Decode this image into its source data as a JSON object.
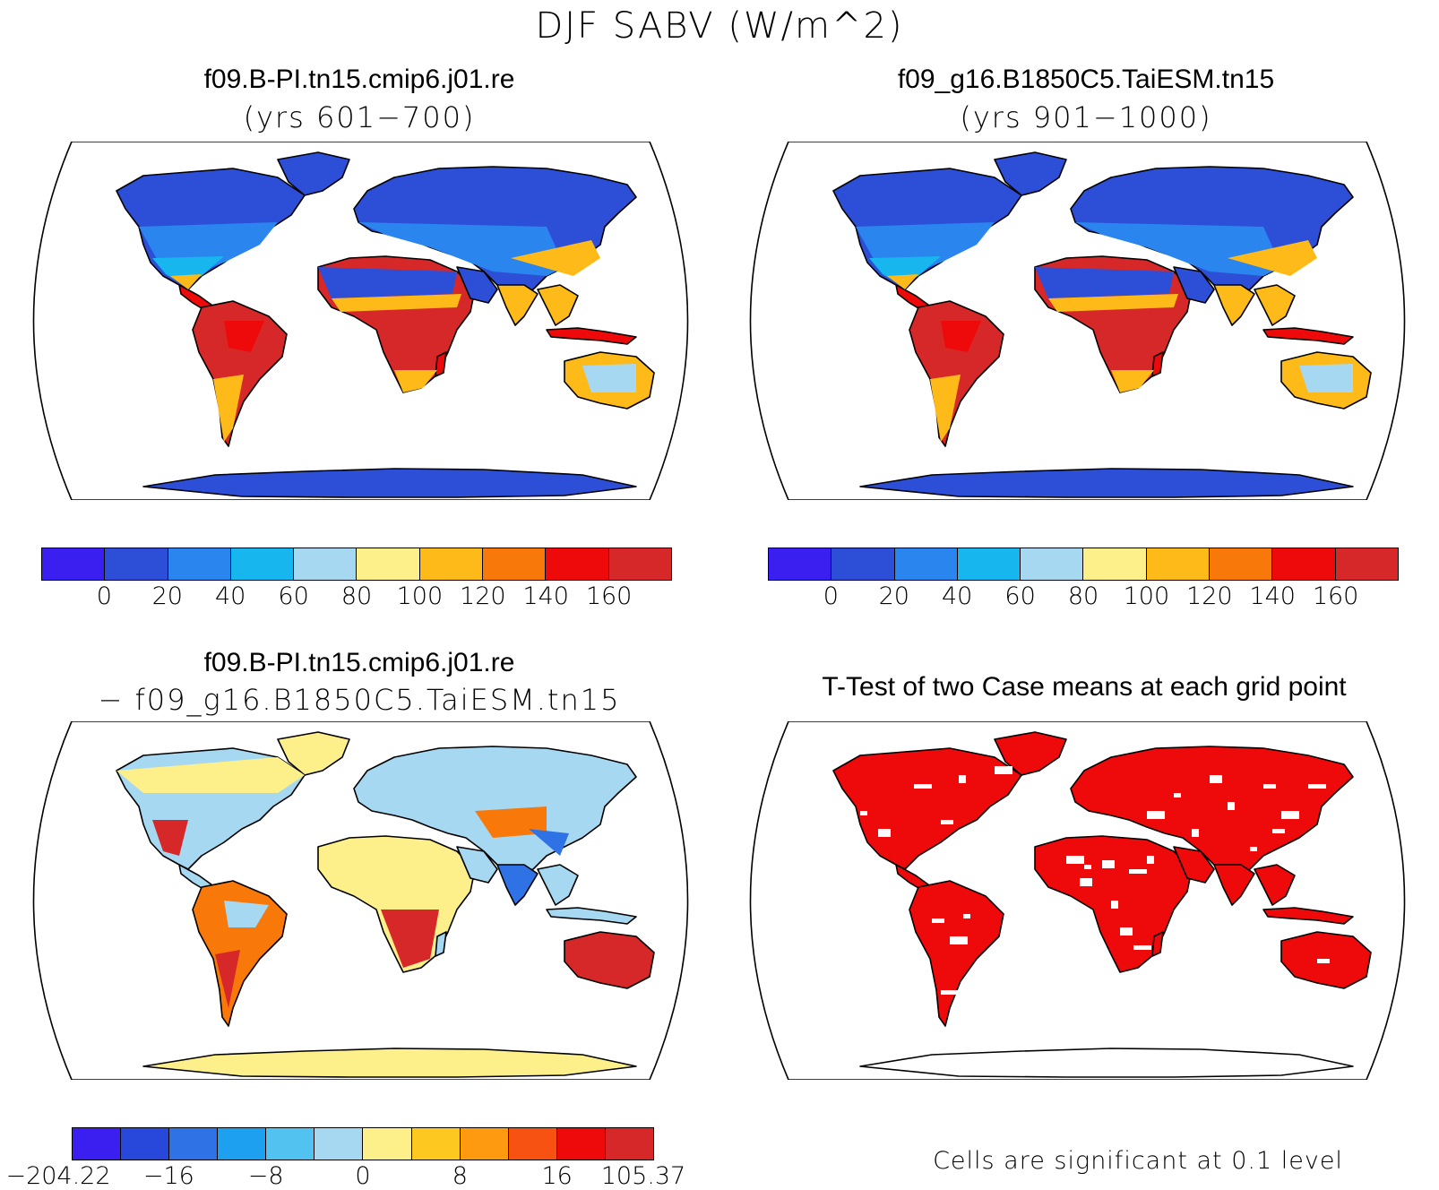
{
  "figure": {
    "title": "DJF SABV (W/m^2)"
  },
  "panels": {
    "top_left": {
      "title": "f09.B-PI.tn15.cmip6.j01.re",
      "subtitle": "(yrs 601−700)"
    },
    "top_right": {
      "title": "f09_g16.B1850C5.TaiESM.tn15",
      "subtitle": "(yrs 901−1000)"
    },
    "bottom_left": {
      "title": "f09.B-PI.tn15.cmip6.j01.re",
      "subtitle": "− f09_g16.B1850C5.TaiESM.tn15"
    },
    "bottom_right": {
      "title": "T-Test of two Case means at each grid point",
      "note": "Cells are significant at 0.1 level"
    }
  },
  "colorbars": {
    "absolute": {
      "colors": [
        "#3b1ef0",
        "#2d4fd8",
        "#2a86ee",
        "#18b6ee",
        "#a6d8f2",
        "#fdf08a",
        "#fdba18",
        "#f8780a",
        "#ee0a0a",
        "#d62828"
      ],
      "ticks": [
        "0",
        "20",
        "40",
        "60",
        "80",
        "100",
        "120",
        "140",
        "160"
      ]
    },
    "difference": {
      "colors": [
        "#3b1ef0",
        "#2848dc",
        "#2e72e6",
        "#1da0f0",
        "#52c2f0",
        "#a6d8f2",
        "#fdf08a",
        "#fdc820",
        "#fd9a10",
        "#f85212",
        "#ee0a0a",
        "#d62828"
      ],
      "ticks": [
        "−204.22",
        "−16",
        "−8",
        "0",
        "8",
        "16",
        "105.37"
      ]
    }
  },
  "significance_color": "#ee0a0a",
  "map_fills": {
    "polar": "#2d4fd8",
    "boreal": "#2a86ee",
    "temperate": "#18b6ee",
    "subtropics": "#fdba18",
    "tropics": "#d62828",
    "tropics_core": "#ee0a0a",
    "desert": "#2d4fd8",
    "diff_neutral": "#fdf08a",
    "diff_light": "#a6d8f2",
    "diff_warm": "#f8780a",
    "diff_hot": "#d62828",
    "diff_blue": "#2e72e6"
  }
}
